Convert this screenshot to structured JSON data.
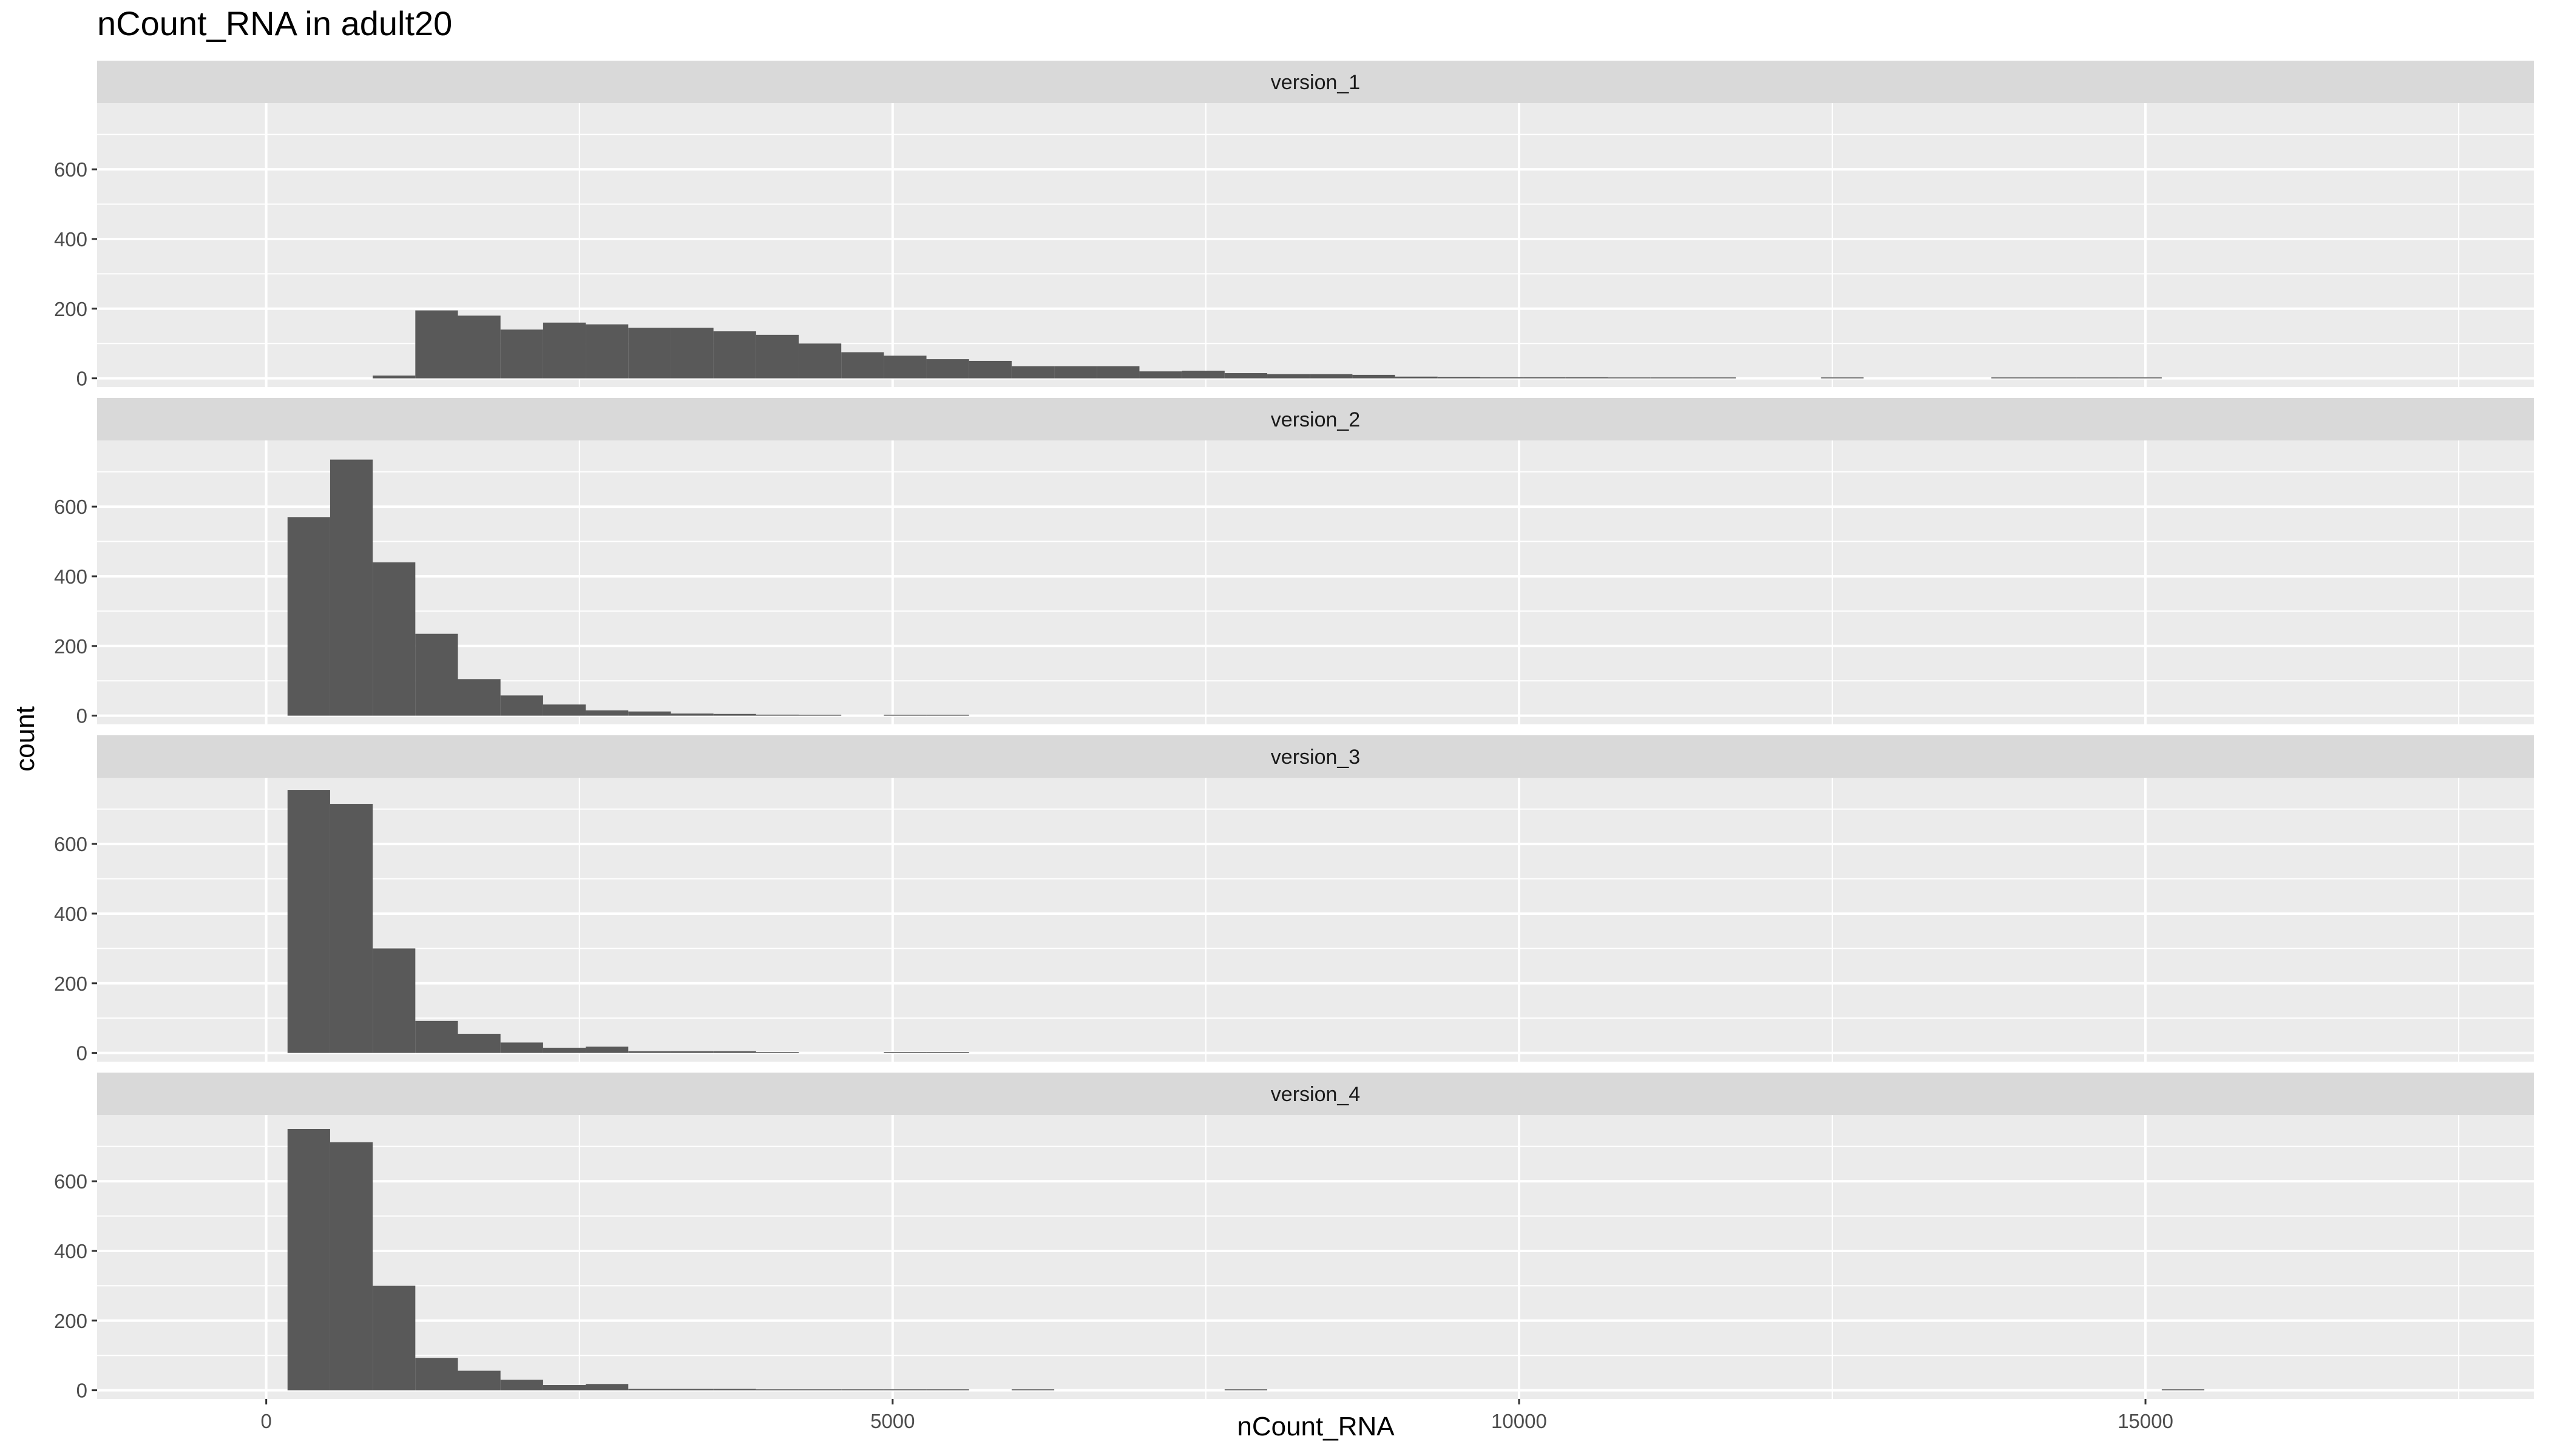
{
  "chart_data": {
    "type": "bar",
    "title": "nCount_RNA in adult20",
    "xlabel": "nCount_RNA",
    "ylabel": "count",
    "xlim": [
      -1350,
      18100
    ],
    "ylim": [
      -25,
      790
    ],
    "x_ticks": [
      0,
      5000,
      10000,
      15000
    ],
    "x_tick_labels": [
      "0",
      "5000",
      "10000",
      "15000"
    ],
    "y_ticks": [
      0,
      200,
      400,
      600
    ],
    "y_tick_labels": [
      "0",
      "200",
      "400",
      "600"
    ],
    "bin_width": 340,
    "first_bin_start": 170,
    "grid": true,
    "fill_color": "#595959",
    "panel_background": "#ebebeb",
    "strip_background": "#d9d9d9",
    "grid_color": "#ffffff",
    "panels": [
      {
        "name": "version_1",
        "counts": [
          0,
          0,
          8,
          195,
          180,
          140,
          160,
          155,
          145,
          145,
          135,
          125,
          100,
          75,
          65,
          55,
          50,
          35,
          35,
          35,
          20,
          22,
          15,
          12,
          12,
          10,
          5,
          4,
          3,
          3,
          3,
          2,
          2,
          1,
          0,
          0,
          2,
          0,
          0,
          0,
          1,
          1,
          1,
          1,
          0,
          0,
          0,
          0,
          0,
          0,
          0,
          0,
          0,
          0,
          0,
          0,
          0,
          0,
          0,
          0,
          0,
          0,
          0,
          0,
          0,
          0,
          0,
          0,
          0,
          0,
          0,
          0,
          0,
          0,
          0,
          0,
          0,
          0,
          0,
          0,
          0,
          0,
          0,
          0,
          0,
          0,
          0,
          0,
          0,
          0,
          0,
          0,
          0,
          0,
          0,
          0,
          0,
          0,
          0,
          0,
          0,
          0,
          1,
          1,
          0,
          0,
          0,
          0,
          0,
          0,
          0,
          1,
          1
        ]
      },
      {
        "name": "version_2",
        "counts": [
          570,
          735,
          440,
          235,
          105,
          58,
          32,
          15,
          12,
          6,
          5,
          3,
          2,
          0,
          1,
          1
        ]
      },
      {
        "name": "version_3",
        "counts": [
          755,
          715,
          300,
          92,
          55,
          30,
          15,
          18,
          5,
          5,
          5,
          2,
          0,
          0,
          1,
          1
        ]
      },
      {
        "name": "version_4",
        "counts": [
          750,
          712,
          300,
          93,
          56,
          30,
          15,
          18,
          4,
          4,
          4,
          2,
          2,
          2,
          1,
          1,
          0,
          2,
          0,
          0,
          0,
          0,
          1,
          0,
          0,
          0,
          0,
          0,
          0,
          0,
          0,
          0,
          0,
          0,
          0,
          0,
          0,
          0,
          0,
          0,
          0,
          0,
          0,
          0,
          1,
          0,
          0,
          0,
          0,
          0,
          0,
          0,
          0,
          0,
          0,
          0,
          0,
          0,
          0,
          0,
          0,
          0,
          0,
          0,
          0,
          0,
          0,
          0,
          0,
          0,
          0,
          0,
          0,
          1
        ]
      }
    ]
  }
}
